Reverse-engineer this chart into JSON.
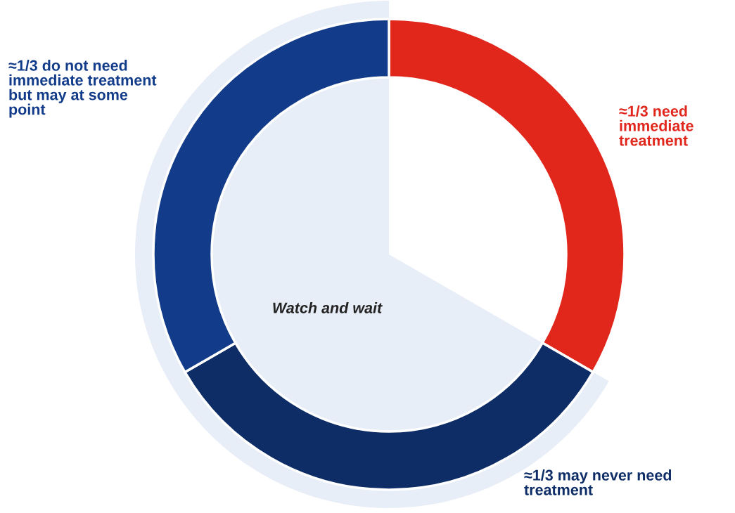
{
  "chart_data": {
    "type": "donut",
    "categories": [
      "≈1/3 need immediate treatment",
      "≈1/3 may never need treatment",
      "≈1/3 do not need immediate treatment but may at some point"
    ],
    "values": [
      33.33,
      33.33,
      33.34
    ],
    "colors": [
      "#e1261c",
      "#0e2d66",
      "#123c8a"
    ],
    "annotations": [
      "Watch and wait"
    ]
  }
}
